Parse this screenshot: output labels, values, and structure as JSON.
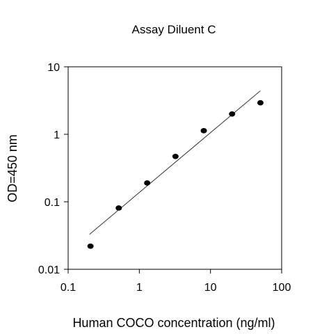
{
  "chart_data": {
    "type": "scatter",
    "title": "Assay Diluent C",
    "xlabel": "Human COCO concentration (ng/ml)",
    "ylabel": "OD=450 nm",
    "xscale": "log",
    "yscale": "log",
    "xlim": [
      0.1,
      100
    ],
    "ylim": [
      0.01,
      10
    ],
    "xticks": [
      0.1,
      1,
      10,
      100
    ],
    "xtick_labels": [
      "0.1",
      "1",
      "10",
      "100"
    ],
    "yticks": [
      0.01,
      0.1,
      1,
      10
    ],
    "ytick_labels": [
      "0.01",
      "0.1",
      "1",
      "10"
    ],
    "grid": false,
    "legend": false,
    "series": [
      {
        "x": [
          0.206,
          0.514,
          1.29,
          3.22,
          8.05,
          20.1,
          50.3
        ],
        "y": [
          0.022,
          0.081,
          0.19,
          0.47,
          1.13,
          2.0,
          2.93
        ]
      }
    ],
    "fit_line": {
      "x": [
        0.2,
        50
      ],
      "y": [
        0.033,
        4.4
      ]
    },
    "colors": {
      "marker": "#000000",
      "line": "#333333",
      "axis": "#000000"
    }
  }
}
